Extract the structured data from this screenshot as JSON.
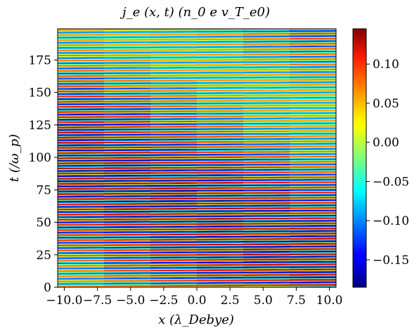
{
  "chart_data": {
    "type": "heatmap",
    "title": "j_e (x, t) (n_0 e v_T_e0)",
    "xlabel": "x (λ_Debye)",
    "ylabel": "t (/ω_p)",
    "xlim": [
      -10.5,
      10.5
    ],
    "ylim": [
      0,
      199
    ],
    "x_ticks": [
      "−10.0",
      "−7.5",
      "−5.0",
      "−2.5",
      "0.0",
      "2.5",
      "5.0",
      "7.5",
      "10.0"
    ],
    "x_tick_values": [
      -10.0,
      -7.5,
      -5.0,
      -2.5,
      0.0,
      2.5,
      5.0,
      7.5,
      10.0
    ],
    "y_ticks": [
      "0",
      "25",
      "50",
      "75",
      "100",
      "125",
      "150",
      "175"
    ],
    "y_tick_values": [
      0,
      25,
      50,
      75,
      100,
      125,
      150,
      175
    ],
    "colorbar": {
      "colormap": "jet",
      "range": [
        -0.185,
        0.145
      ],
      "tick_labels": [
        "−0.15",
        "−0.10",
        "−0.05",
        "0.00",
        "0.05",
        "0.10"
      ],
      "tick_values": [
        -0.15,
        -0.1,
        -0.05,
        0.0,
        0.05,
        0.1
      ]
    },
    "pattern": {
      "description": "horizontal oscillating stripes in time, slightly tilted in x",
      "stripe_period_t": 3.95,
      "tilt_dt_per_dx": 0.06,
      "amplitude_range": [
        -0.185,
        0.145
      ]
    }
  }
}
